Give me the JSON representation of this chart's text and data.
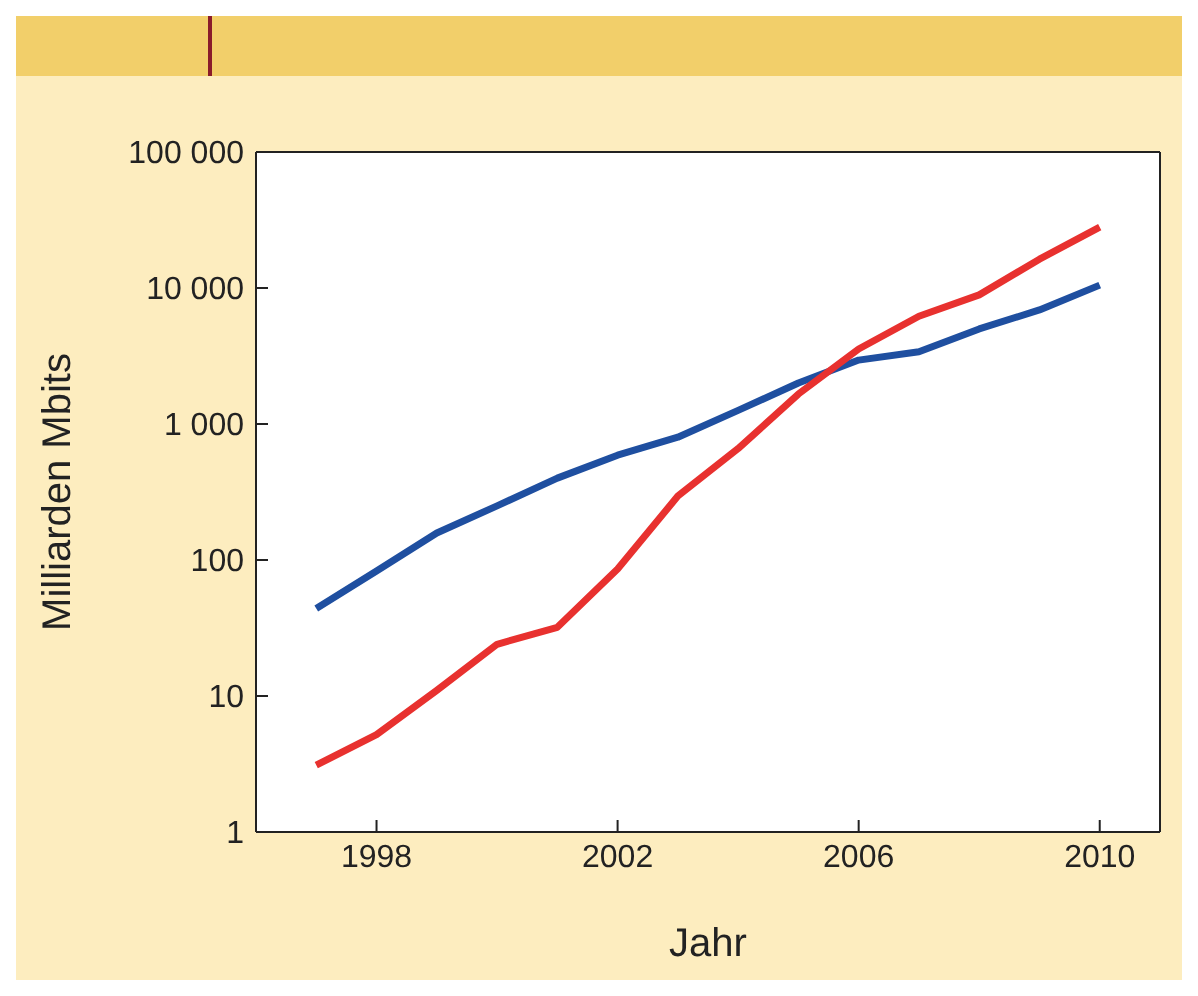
{
  "chart_data": {
    "type": "line",
    "xlabel": "Jahr",
    "ylabel": "Milliarden Mbits",
    "log": "y",
    "marker": "none",
    "line_style": "solid",
    "x": [
      1997,
      1998,
      1999,
      2000,
      2001,
      2002,
      2003,
      2004,
      2005,
      2006,
      2007,
      2008,
      2009,
      2010
    ],
    "xlim": [
      1996,
      2011
    ],
    "xticks": [
      1998,
      2002,
      2006,
      2010
    ],
    "ylim": [
      1,
      100000
    ],
    "yticks": [
      {
        "value": 1,
        "label": "1"
      },
      {
        "value": 10,
        "label": "10"
      },
      {
        "value": 100,
        "label": "100"
      },
      {
        "value": 1000,
        "label": "1 000"
      },
      {
        "value": 10000,
        "label": "10 000"
      },
      {
        "value": 100000,
        "label": "100 000"
      }
    ],
    "series": [
      {
        "color": "#1f4fa0",
        "values": [
          44,
          83,
          158,
          250,
          400,
          590,
          800,
          1260,
          2000,
          2950,
          3400,
          5000,
          6900,
          10500
        ]
      },
      {
        "color": "#e8312f",
        "values": [
          3.1,
          5.2,
          11,
          24,
          32,
          86,
          295,
          660,
          1660,
          3560,
          6200,
          8900,
          16300,
          28000
        ]
      }
    ]
  }
}
